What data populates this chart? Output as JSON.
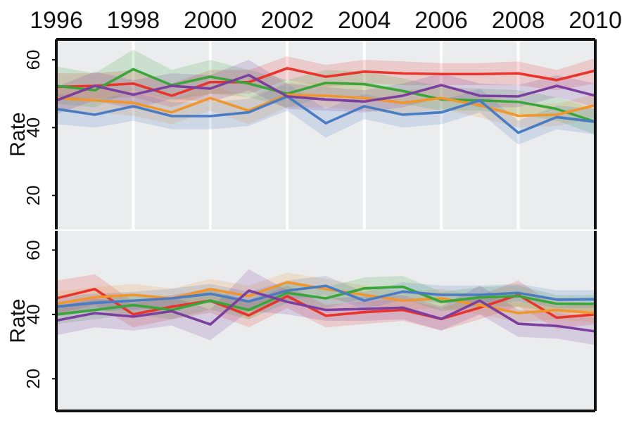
{
  "chart_data": [
    {
      "type": "line",
      "ylabel": "Rate",
      "x": [
        1996,
        1997,
        1998,
        1999,
        2000,
        2001,
        2002,
        2003,
        2004,
        2005,
        2006,
        2007,
        2008,
        2009,
        2010
      ],
      "xlim": [
        1996,
        2010
      ],
      "xticks": [
        1996,
        1998,
        2000,
        2002,
        2004,
        2006,
        2008,
        2010
      ],
      "ylim": [
        10,
        66
      ],
      "yticks": [
        20,
        40,
        60
      ],
      "grid": "x",
      "marker": "none",
      "series": [
        {
          "color": "#e8342b",
          "values": [
            52,
            52.3,
            53,
            49.4,
            53.4,
            53.4,
            57.5,
            55,
            56.5,
            56,
            55.8,
            55.8,
            56,
            54,
            56.8
          ],
          "lower": [
            48,
            48.5,
            49,
            46,
            50,
            50,
            54,
            52,
            53,
            52.5,
            52.5,
            52.5,
            52.5,
            51,
            53
          ],
          "upper": [
            56,
            56,
            57,
            53,
            57,
            57,
            61,
            58.5,
            60,
            59.5,
            59,
            59,
            59.5,
            57,
            60.5
          ]
        },
        {
          "color": "#3aa63a",
          "values": [
            52.3,
            51,
            57.2,
            52.5,
            55,
            53,
            50,
            53.2,
            52.8,
            50.8,
            48.3,
            48,
            47.6,
            45.5,
            41.7
          ],
          "lower": [
            47,
            46,
            51,
            48,
            50,
            49,
            46,
            49,
            49,
            47,
            45,
            45,
            44,
            42,
            38
          ],
          "upper": [
            58,
            56,
            63,
            57,
            60,
            57,
            54,
            57,
            56.5,
            54.5,
            52,
            51.5,
            51,
            49,
            45.5
          ]
        },
        {
          "color": "#f0962c",
          "values": [
            48.7,
            48,
            47.3,
            44.5,
            48.7,
            45,
            49.7,
            49.4,
            48.7,
            47.3,
            48.7,
            46.6,
            43.5,
            43.8,
            46.6
          ],
          "lower": [
            45,
            44.5,
            43.5,
            41,
            45,
            41,
            46,
            46,
            45,
            44,
            45.5,
            43,
            40,
            40.5,
            43
          ],
          "upper": [
            52.5,
            51.5,
            51,
            48,
            52.5,
            49,
            53.5,
            53,
            52.5,
            51,
            52,
            50,
            47,
            47,
            50
          ]
        },
        {
          "color": "#4a7cc4",
          "values": [
            45.5,
            43.8,
            46.3,
            43.4,
            43.4,
            44.5,
            49.2,
            41.3,
            46.3,
            43.8,
            44.5,
            48,
            38.5,
            43.1,
            41.7
          ],
          "lower": [
            41,
            40,
            42,
            39.5,
            39.5,
            40.5,
            45,
            37,
            42.5,
            40,
            41,
            44.5,
            35,
            39.5,
            38
          ],
          "upper": [
            50,
            48,
            50.5,
            47.5,
            47.5,
            48.5,
            53,
            45.5,
            50,
            47.5,
            48,
            51.5,
            42,
            46.5,
            45.5
          ]
        },
        {
          "color": "#7b3fa0",
          "values": [
            48,
            52.3,
            49.7,
            52.3,
            51.5,
            55.5,
            49.2,
            48.3,
            47.7,
            49.4,
            52.5,
            49.4,
            49.2,
            52.3,
            49.4
          ],
          "lower": [
            44,
            48,
            45.5,
            48.5,
            47.5,
            51,
            45.5,
            45,
            44.5,
            46,
            49,
            46,
            46,
            49,
            46
          ],
          "upper": [
            52,
            56.5,
            54,
            56,
            55.5,
            60,
            53,
            52,
            51,
            53,
            56,
            53,
            52.5,
            55.5,
            53
          ]
        }
      ]
    },
    {
      "type": "line",
      "ylabel": "Rate",
      "x": [
        1996,
        1997,
        1998,
        1999,
        2000,
        2001,
        2002,
        2003,
        2004,
        2005,
        2006,
        2007,
        2008,
        2009,
        2010
      ],
      "xlim": [
        1996,
        2010
      ],
      "xticks": [
        1996,
        1998,
        2000,
        2002,
        2004,
        2006,
        2008,
        2010
      ],
      "ylim": [
        10,
        66
      ],
      "yticks": [
        20,
        40,
        60
      ],
      "grid": "x",
      "marker": "none",
      "tick_labels": "y",
      "series": [
        {
          "color": "#e8342b",
          "values": [
            45,
            47.9,
            40,
            42.4,
            44.3,
            39.7,
            45.7,
            39.6,
            40.7,
            41.4,
            38.6,
            42.1,
            46.1,
            39,
            40
          ],
          "lower": [
            40,
            43,
            36,
            38.5,
            40.5,
            36,
            42,
            36,
            37,
            38,
            35,
            38.5,
            42.5,
            35.5,
            37
          ],
          "upper": [
            50.5,
            52.5,
            44,
            46,
            48,
            43.5,
            49,
            43,
            44,
            45,
            42,
            46,
            50.5,
            42.5,
            43.5
          ]
        },
        {
          "color": "#f0962c",
          "values": [
            43.3,
            45.3,
            46.1,
            45,
            47.9,
            45.7,
            50,
            47.9,
            46.1,
            44.3,
            45,
            42.9,
            40.4,
            41.4,
            40.4
          ],
          "lower": [
            40,
            42,
            43,
            42,
            44.5,
            38.5,
            47,
            45,
            43,
            41.5,
            42,
            40,
            37.5,
            38.5,
            37.5
          ],
          "upper": [
            47,
            48.5,
            49.5,
            48,
            51,
            49,
            53,
            51,
            49,
            47,
            48,
            46,
            43.5,
            44.5,
            43.5
          ]
        },
        {
          "color": "#3aa63a",
          "values": [
            40,
            41.4,
            42.9,
            41.4,
            44.3,
            41.4,
            46.7,
            45,
            48.1,
            48.6,
            43.9,
            45.3,
            45.7,
            43.3,
            43.3
          ],
          "lower": [
            37,
            38.5,
            40,
            38.5,
            41.5,
            38.5,
            43.5,
            42,
            45,
            45,
            41,
            42.5,
            42.5,
            40.5,
            40.5
          ],
          "upper": [
            43,
            44.5,
            46,
            44.5,
            47.5,
            44.5,
            50,
            48.5,
            51.5,
            52,
            47,
            48.5,
            49,
            46,
            46
          ]
        },
        {
          "color": "#4a7cc4",
          "values": [
            42.4,
            43.6,
            44.3,
            45,
            46.4,
            44,
            47.4,
            48.9,
            44.3,
            47.1,
            46.1,
            46.1,
            46.7,
            44.6,
            44.7
          ],
          "lower": [
            39.5,
            41,
            41.5,
            42,
            43.5,
            41,
            44.5,
            46,
            41.5,
            44.5,
            43.5,
            43.5,
            44,
            42,
            42
          ],
          "upper": [
            45.5,
            46.5,
            47,
            48,
            49.5,
            47,
            50.5,
            52,
            47,
            50,
            49,
            49,
            49.5,
            47.5,
            47.5
          ]
        },
        {
          "color": "#7b3fa0",
          "values": [
            38.1,
            40.4,
            39.3,
            41,
            36.9,
            47.4,
            43.9,
            41.4,
            41.7,
            42.1,
            38.6,
            44.3,
            37.1,
            36.4,
            34.7
          ],
          "lower": [
            33.5,
            36,
            35,
            36.5,
            32,
            41,
            40,
            38,
            38,
            38.5,
            35,
            40,
            33,
            32.5,
            30.5
          ],
          "upper": [
            42.5,
            45,
            43.5,
            45.5,
            41.5,
            54,
            47.5,
            45,
            45.5,
            46,
            42.5,
            49,
            41.5,
            40.5,
            39
          ]
        }
      ]
    }
  ]
}
